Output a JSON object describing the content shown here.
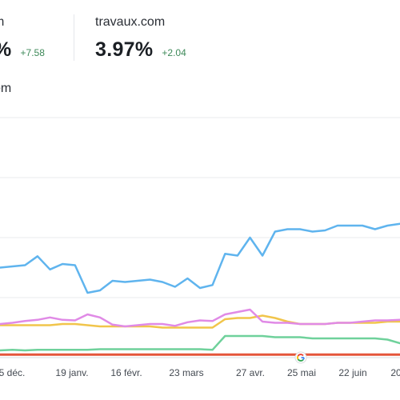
{
  "metrics": [
    {
      "name": "m",
      "value": "%",
      "delta": "+7.58"
    },
    {
      "name": "travaux.com",
      "value": "3.97%",
      "delta": "+2.04"
    }
  ],
  "legend_label": "om",
  "icons": {
    "marker": "google-icon"
  },
  "colors": {
    "blue": "#5fb4ee",
    "pink": "#e08ae6",
    "yellow": "#f1c54b",
    "green": "#6fd19b",
    "red": "#e4553a"
  },
  "chart_data": {
    "type": "line",
    "title": "",
    "xlabel": "",
    "ylabel": "",
    "grid": true,
    "x_tick_labels": [
      "5 déc.",
      "19 janv.",
      "16 févr.",
      "23 mars",
      "27 avr.",
      "25 mai",
      "22 juin",
      "20"
    ],
    "series": [
      {
        "color": "#5fb4ee",
        "values": [
          15.0,
          15.2,
          15.4,
          16.9,
          14.7,
          15.6,
          15.4,
          10.8,
          11.2,
          12.8,
          12.6,
          12.8,
          13.0,
          12.6,
          11.8,
          13.2,
          11.6,
          12.1,
          17.3,
          17.0,
          20.0,
          17.0,
          21.0,
          21.4,
          21.4,
          21.0,
          21.2,
          22.0,
          22.0,
          22.0,
          21.4,
          22.0,
          22.3
        ]
      },
      {
        "color": "#e08ae6",
        "values": [
          5.6,
          5.8,
          6.1,
          6.3,
          6.7,
          6.3,
          6.2,
          7.2,
          6.7,
          5.5,
          5.2,
          5.4,
          5.6,
          5.6,
          5.3,
          5.9,
          6.2,
          6.1,
          7.2,
          7.6,
          8.0,
          6.0,
          5.8,
          5.8,
          5.6,
          5.6,
          5.6,
          5.8,
          5.8,
          6.0,
          6.2,
          6.2,
          6.3
        ]
      },
      {
        "color": "#f1c54b",
        "values": [
          5.4,
          5.4,
          5.4,
          5.4,
          5.4,
          5.6,
          5.6,
          5.4,
          5.2,
          5.2,
          5.2,
          5.2,
          5.2,
          5.0,
          5.0,
          5.0,
          5.0,
          5.0,
          6.4,
          6.6,
          6.6,
          7.0,
          6.6,
          6.0,
          5.6,
          5.6,
          5.6,
          5.8,
          5.8,
          5.8,
          5.8,
          6.0,
          6.0
        ]
      },
      {
        "color": "#6fd19b",
        "values": [
          1.2,
          1.3,
          1.2,
          1.3,
          1.3,
          1.3,
          1.3,
          1.3,
          1.4,
          1.4,
          1.4,
          1.4,
          1.4,
          1.4,
          1.4,
          1.4,
          1.4,
          1.3,
          3.6,
          3.6,
          3.6,
          3.6,
          3.4,
          3.4,
          3.4,
          3.2,
          3.2,
          3.2,
          3.2,
          3.2,
          3.2,
          3.0,
          2.4
        ]
      },
      {
        "color": "#e4553a",
        "values": [
          0.5,
          0.5,
          0.5,
          0.5,
          0.5,
          0.5,
          0.5,
          0.5,
          0.5,
          0.5,
          0.5,
          0.5,
          0.5,
          0.5,
          0.5,
          0.5,
          0.5,
          0.5,
          0.5,
          0.5,
          0.5,
          0.5,
          0.5,
          0.5,
          0.5,
          0.5,
          0.5,
          0.5,
          0.5,
          0.5,
          0.5,
          0.5,
          0.5
        ]
      }
    ],
    "ylim": [
      0,
      40
    ]
  }
}
